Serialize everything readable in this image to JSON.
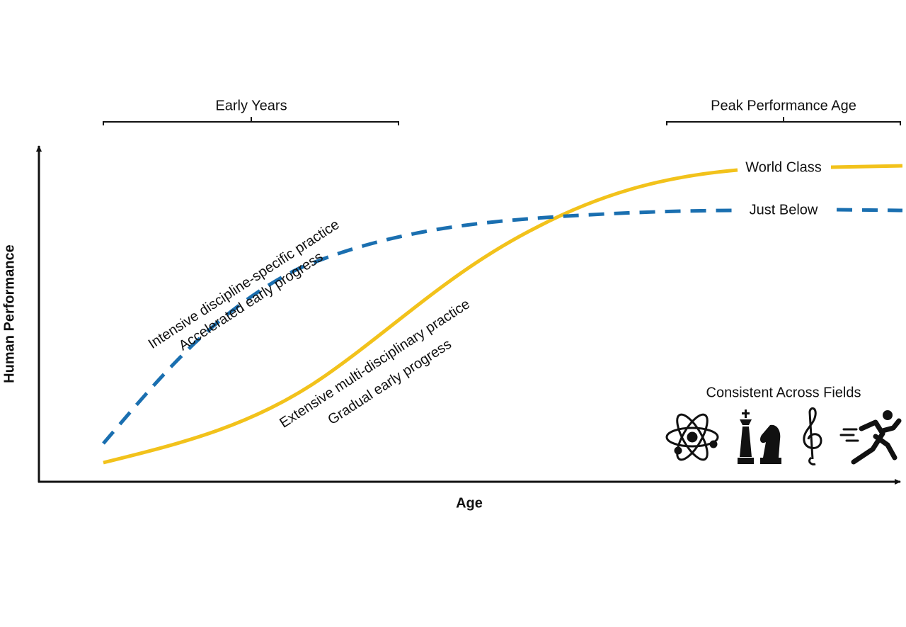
{
  "axes": {
    "x_label": "Age",
    "y_label": "Human Performance"
  },
  "brackets": [
    {
      "label": "Early Years"
    },
    {
      "label": "Peak Performance Age"
    }
  ],
  "curves": [
    {
      "label": "World Class",
      "annotation": [
        "Extensive multi-disciplinary practice",
        "Gradual early progress"
      ]
    },
    {
      "label": "Just Below",
      "annotation": [
        "Intensive discipline-specific practice",
        "Accelerated early progress"
      ]
    }
  ],
  "fields_caption": "Consistent Across Fields"
}
